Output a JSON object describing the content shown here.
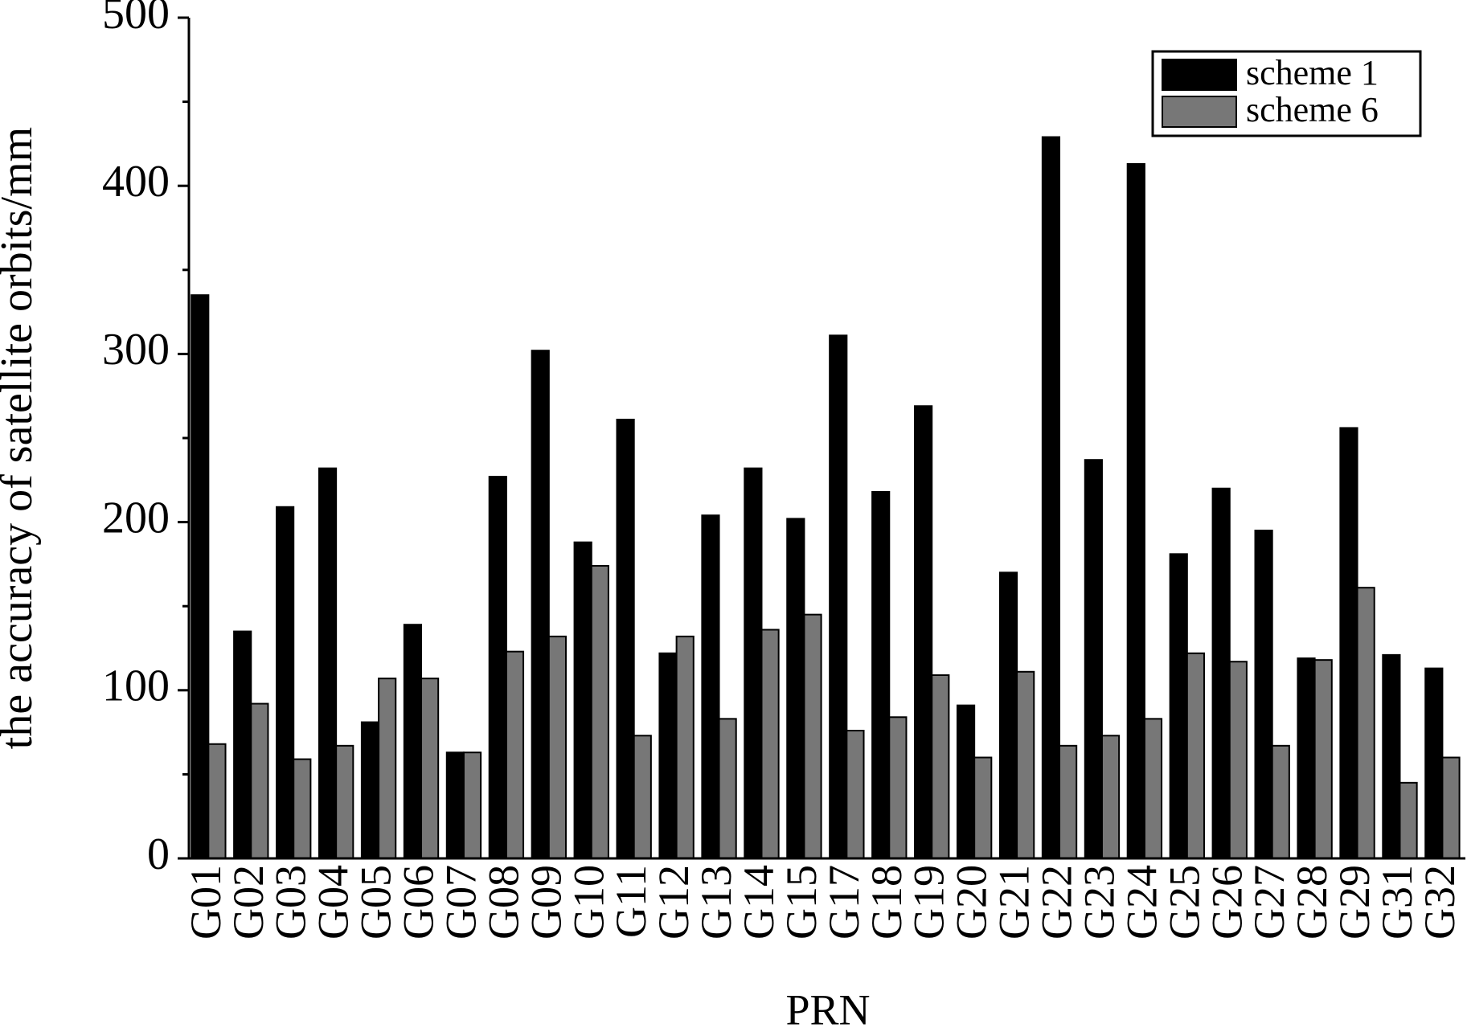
{
  "chart_data": {
    "type": "bar",
    "x_label": "PRN",
    "y_label": "the accuracy of satellite orbits/mm",
    "categories": [
      "G01",
      "G02",
      "G03",
      "G04",
      "G05",
      "G06",
      "G07",
      "G08",
      "G09",
      "G10",
      "G11",
      "G12",
      "G13",
      "G14",
      "G15",
      "G17",
      "G18",
      "G19",
      "G20",
      "G21",
      "G22",
      "G23",
      "G24",
      "G25",
      "G26",
      "G27",
      "G28",
      "G29",
      "G31",
      "G32"
    ],
    "series": [
      {
        "name": "scheme 1",
        "color": "#000000",
        "values": [
          335,
          135,
          209,
          232,
          81,
          139,
          63,
          227,
          302,
          188,
          261,
          122,
          204,
          232,
          202,
          311,
          218,
          269,
          91,
          170,
          429,
          237,
          413,
          181,
          220,
          195,
          119,
          256,
          121,
          113
        ]
      },
      {
        "name": "scheme 6",
        "color": "#777777",
        "values": [
          68,
          92,
          59,
          67,
          107,
          107,
          63,
          123,
          132,
          174,
          73,
          132,
          83,
          136,
          145,
          76,
          84,
          109,
          60,
          111,
          67,
          73,
          83,
          122,
          117,
          67,
          118,
          161,
          45,
          60
        ]
      }
    ],
    "ylim": [
      0,
      500
    ],
    "yticks": [
      0,
      100,
      200,
      300,
      400,
      500
    ],
    "minor_yticks": [
      50,
      150,
      250,
      350,
      450
    ],
    "legend": "upper right",
    "grid": false
  }
}
